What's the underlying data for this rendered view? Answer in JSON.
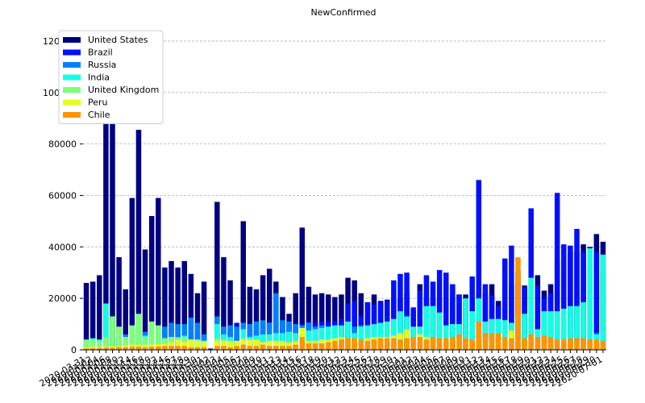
{
  "chart_data": {
    "type": "bar",
    "title": "NewConfirmed",
    "categories": [
      "2020-03-31",
      "2020-04-02",
      "2020-04-04",
      "2020-04-06",
      "2020-04-08",
      "2020-04-10",
      "2020-04-12",
      "2020-04-14",
      "2020-04-16",
      "2020-04-18",
      "2020-04-20",
      "2020-04-22",
      "2020-04-24",
      "2020-04-26",
      "2020-04-27",
      "2020-04-28",
      "2020-04-29",
      "2020-04-30",
      "2020-05-01",
      "2020-05-02",
      "2020-05-03",
      "2020-05-04",
      "2020-05-05",
      "2020-05-06",
      "2020-05-07",
      "2020-05-08",
      "2020-05-09",
      "2020-05-10",
      "2020-05-11",
      "2020-05-12",
      "2020-05-13",
      "2020-05-14",
      "2020-05-15",
      "2020-05-16",
      "2020-05-17",
      "2020-05-18",
      "2020-05-19",
      "2020-05-20",
      "2020-05-21",
      "2020-05-22",
      "2020-05-23",
      "2020-05-24",
      "2020-05-25",
      "2020-05-26",
      "2020-05-27",
      "2020-05-28",
      "2020-05-29",
      "2020-05-30",
      "2020-05-31",
      "2020-06-01",
      "2020-06-02",
      "2020-06-03",
      "2020-06-04",
      "2020-06-05",
      "2020-06-06",
      "2020-06-07",
      "2020-06-08",
      "2020-06-09",
      "2020-06-10",
      "2020-06-11",
      "2020-06-12",
      "2020-06-13",
      "2020-06-14",
      "2020-06-15",
      "2020-06-16",
      "2020-06-17",
      "2020-06-18",
      "2020-06-19",
      "2020-06-20",
      "2020-06-21",
      "2020-06-22",
      "2020-06-23",
      "2020-06-24",
      "2020-06-25",
      "2020-06-26",
      "2020-06-27",
      "2020-06-28",
      "2020-06-29",
      "2020-06-30",
      "2020-07-01"
    ],
    "series": [
      {
        "name": "United States",
        "color": "#000080",
        "values": [
          26000,
          26500,
          29000,
          118500,
          105000,
          36000,
          23500,
          59000,
          85500,
          39000,
          52000,
          59000,
          32000,
          34500,
          32000,
          34500,
          29500,
          22000,
          26500,
          500,
          57500,
          36000,
          27000,
          5000,
          50000,
          24500,
          23500,
          29000,
          31500,
          26500,
          20500,
          14000,
          22000,
          47500,
          24500,
          21500,
          22000,
          21500,
          20500,
          21500,
          28000,
          27000,
          22000,
          18500,
          21500,
          19000,
          19500,
          20000,
          20000,
          22000,
          15000,
          25500,
          20000,
          20000,
          20000,
          20000,
          20000,
          21500,
          21500,
          20000,
          22000,
          22000,
          25500,
          19000,
          25000,
          25000,
          26000,
          25000,
          27000,
          29000,
          23000,
          25500,
          35000,
          38000,
          38000,
          38000,
          41000,
          40000,
          45000,
          42000
        ]
      },
      {
        "name": "Brazil",
        "color": "#0010ff",
        "values": [
          1000,
          1500,
          2000,
          2000,
          2000,
          2500,
          2500,
          3000,
          3000,
          3000,
          3500,
          3500,
          4000,
          4000,
          4000,
          5000,
          5000,
          5500,
          6000,
          300,
          6500,
          6500,
          7000,
          10500,
          7000,
          7500,
          8000,
          10000,
          11000,
          10500,
          11000,
          10000,
          9000,
          10000,
          11000,
          10500,
          11000,
          11000,
          11000,
          12000,
          18000,
          19000,
          13000,
          18500,
          17500,
          18500,
          19000,
          27000,
          29500,
          30000,
          16500,
          23000,
          29000,
          26500,
          31000,
          30000,
          25500,
          21500,
          18500,
          28500,
          66000,
          25500,
          21000,
          17000,
          35500,
          40500,
          30000,
          24500,
          55000,
          25000,
          20000,
          22000,
          61000,
          41000,
          40500,
          47000,
          38000,
          32000,
          38000,
          30000
        ]
      },
      {
        "name": "Russia",
        "color": "#0080ff",
        "values": [
          2000,
          2500,
          3000,
          5000,
          5500,
          6000,
          6000,
          6500,
          7000,
          7000,
          7000,
          8000,
          9000,
          10500,
          10000,
          10000,
          12500,
          10500,
          6000,
          200,
          13000,
          9000,
          9500,
          9000,
          10500,
          10000,
          11000,
          11500,
          10500,
          22000,
          11500,
          11000,
          10000,
          9500,
          10500,
          9000,
          9500,
          9000,
          9000,
          9000,
          9000,
          9000,
          9500,
          9000,
          9000,
          8500,
          8500,
          9000,
          8500,
          8500,
          8500,
          9000,
          8500,
          8000,
          8000,
          8000,
          7500,
          7500,
          7500,
          7000,
          7000,
          7000,
          7000,
          7000,
          7000,
          7000,
          6500,
          6500,
          6500,
          6500,
          6500,
          6500,
          6500,
          6500,
          6500,
          6500,
          6500,
          6500,
          6500,
          6500
        ]
      },
      {
        "name": "India",
        "color": "#14ffe2",
        "values": [
          3000,
          4500,
          4000,
          18000,
          1500,
          1500,
          1500,
          1500,
          1500,
          5500,
          2000,
          2000,
          4500,
          3500,
          5000,
          5500,
          3500,
          4000,
          3500,
          100,
          10000,
          6000,
          5000,
          2000,
          8000,
          5000,
          5500,
          6000,
          6000,
          6500,
          6500,
          7000,
          6500,
          8000,
          7500,
          8000,
          8500,
          9000,
          9500,
          9500,
          11000,
          6500,
          9000,
          9500,
          10000,
          10500,
          11000,
          12000,
          15000,
          13000,
          9000,
          9000,
          17000,
          17000,
          14500,
          9500,
          10000,
          10000,
          20000,
          15000,
          20000,
          11000,
          12000,
          12000,
          11500,
          10500,
          13500,
          14000,
          28000,
          8000,
          15000,
          15000,
          15000,
          16000,
          17000,
          17000,
          18500,
          39500,
          6000,
          37000
        ]
      },
      {
        "name": "United Kingdom",
        "color": "#7cff79",
        "values": [
          4000,
          4000,
          3500,
          5000,
          13000,
          9000,
          5000,
          9500,
          14000,
          5000,
          11000,
          9500,
          4500,
          5000,
          4500,
          5000,
          4000,
          4000,
          3500,
          100,
          4500,
          4000,
          3500,
          1000,
          4500,
          3500,
          3500,
          3000,
          3000,
          3000,
          2500,
          2000,
          2500,
          3000,
          2000,
          1500,
          1500,
          1500,
          1500,
          1500,
          1500,
          1500,
          1500,
          1000,
          1000,
          1000,
          1000,
          1500,
          1500,
          1500,
          1000,
          1000,
          1000,
          1000,
          1000,
          1000,
          1000,
          1000,
          1000,
          1000,
          1000,
          1000,
          1000,
          1000,
          1000,
          1000,
          1000,
          1000,
          1000,
          800,
          800,
          800,
          800,
          800,
          700,
          700,
          700,
          700,
          700,
          700
        ]
      },
      {
        "name": "Peru",
        "color": "#e4ff1a",
        "values": [
          1000,
          1200,
          1200,
          1400,
          1500,
          1500,
          1700,
          2000,
          2000,
          2000,
          2100,
          2200,
          2400,
          3000,
          4000,
          3000,
          4000,
          3500,
          3000,
          100,
          3500,
          3500,
          3500,
          3500,
          4000,
          4000,
          4000,
          3000,
          3500,
          3500,
          3500,
          3000,
          3500,
          8500,
          3500,
          3500,
          4000,
          4000,
          4500,
          5000,
          4500,
          4500,
          4000,
          4500,
          5000,
          5000,
          5000,
          5500,
          6500,
          8000,
          5000,
          6000,
          5000,
          5000,
          4500,
          4500,
          4500,
          4500,
          4000,
          4000,
          4000,
          4000,
          4000,
          4000,
          4500,
          7500,
          4000,
          4000,
          4000,
          3500,
          3500,
          3500,
          3500,
          3500,
          3500,
          3500,
          3500,
          3500,
          3500,
          3000
        ]
      },
      {
        "name": "Chile",
        "color": "#ff9400",
        "values": [
          500,
          600,
          700,
          800,
          800,
          1000,
          1000,
          1200,
          1200,
          1000,
          1200,
          1300,
          1500,
          1500,
          1500,
          1500,
          1000,
          1000,
          1000,
          50,
          1500,
          1500,
          1000,
          1500,
          2000,
          1500,
          1500,
          2000,
          1500,
          1500,
          1500,
          1500,
          2000,
          5000,
          2500,
          2500,
          2500,
          3000,
          3500,
          4000,
          4500,
          4500,
          4000,
          3500,
          4000,
          4500,
          4500,
          4500,
          4000,
          4500,
          5000,
          5000,
          4000,
          5000,
          4500,
          4500,
          5000,
          6000,
          4500,
          4000,
          11000,
          6500,
          6500,
          6500,
          5000,
          4500,
          36000,
          4500,
          6000,
          5000,
          5500,
          5000,
          4000,
          4000,
          4500,
          4500,
          4500,
          4000,
          4000,
          3500
        ]
      }
    ],
    "ylim": [
      0,
      125000
    ],
    "yticks": [
      0,
      20000,
      40000,
      60000,
      80000,
      100000,
      120000
    ],
    "grid": true,
    "legend": "upper-left"
  }
}
